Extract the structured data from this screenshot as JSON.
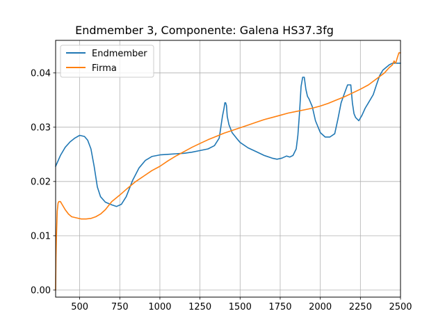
{
  "chart_data": {
    "type": "line",
    "title": "Endmember 3, Componente: Galena HS37.3fg",
    "xlabel": "",
    "ylabel": "",
    "xlim": [
      350,
      2500
    ],
    "ylim": [
      -0.0013,
      0.046
    ],
    "xticks": [
      500,
      750,
      1000,
      1250,
      1500,
      1750,
      2000,
      2250,
      2500
    ],
    "yticks": [
      0.0,
      0.01,
      0.02,
      0.03,
      0.04
    ],
    "ytick_labels": [
      "0.00",
      "0.01",
      "0.02",
      "0.03",
      "0.04"
    ],
    "grid": true,
    "legend_position": "top-left",
    "series": [
      {
        "name": "Endmember",
        "color": "#1f77b4",
        "x": [
          350,
          380,
          410,
          440,
          470,
          500,
          530,
          550,
          570,
          590,
          610,
          630,
          660,
          700,
          730,
          760,
          790,
          830,
          870,
          910,
          950,
          1000,
          1050,
          1100,
          1150,
          1200,
          1250,
          1300,
          1340,
          1370,
          1390,
          1400,
          1405,
          1410,
          1415,
          1420,
          1430,
          1450,
          1480,
          1500,
          1550,
          1600,
          1650,
          1700,
          1730,
          1760,
          1790,
          1810,
          1830,
          1850,
          1860,
          1870,
          1880,
          1890,
          1900,
          1910,
          1920,
          1930,
          1950,
          1970,
          2000,
          2030,
          2060,
          2090,
          2110,
          2130,
          2150,
          2170,
          2190,
          2200,
          2210,
          2220,
          2240,
          2260,
          2280,
          2300,
          2330,
          2350,
          2370,
          2390,
          2410,
          2430,
          2450,
          2470,
          2490,
          2500
        ],
        "values": [
          0.0228,
          0.0248,
          0.0263,
          0.0273,
          0.028,
          0.0285,
          0.0283,
          0.0276,
          0.026,
          0.0228,
          0.019,
          0.0172,
          0.0162,
          0.0157,
          0.0154,
          0.0158,
          0.0172,
          0.0202,
          0.0225,
          0.0239,
          0.0246,
          0.0249,
          0.025,
          0.0251,
          0.0252,
          0.0254,
          0.0257,
          0.026,
          0.0266,
          0.028,
          0.032,
          0.0335,
          0.0345,
          0.0345,
          0.034,
          0.032,
          0.0305,
          0.029,
          0.0279,
          0.0272,
          0.0262,
          0.0255,
          0.0248,
          0.0243,
          0.0241,
          0.0243,
          0.0247,
          0.0245,
          0.0248,
          0.026,
          0.0285,
          0.0325,
          0.0375,
          0.0392,
          0.0392,
          0.037,
          0.0357,
          0.0352,
          0.0338,
          0.0312,
          0.029,
          0.0282,
          0.0282,
          0.0288,
          0.0315,
          0.0345,
          0.0362,
          0.0378,
          0.0378,
          0.0345,
          0.0325,
          0.0318,
          0.0312,
          0.0322,
          0.0335,
          0.0345,
          0.036,
          0.0378,
          0.0395,
          0.0405,
          0.041,
          0.0415,
          0.0418,
          0.0418,
          0.0418,
          0.0418
        ]
      },
      {
        "name": "Firma",
        "color": "#ff7f0e",
        "x": [
          350,
          352,
          355,
          360,
          365,
          370,
          380,
          390,
          410,
          430,
          450,
          480,
          510,
          540,
          570,
          600,
          630,
          660,
          700,
          750,
          800,
          850,
          900,
          950,
          1000,
          1050,
          1100,
          1150,
          1200,
          1250,
          1300,
          1350,
          1400,
          1450,
          1500,
          1550,
          1600,
          1650,
          1700,
          1750,
          1800,
          1850,
          1900,
          1950,
          2000,
          2050,
          2100,
          2150,
          2200,
          2250,
          2300,
          2350,
          2400,
          2430,
          2450,
          2460,
          2470,
          2480,
          2490,
          2500
        ],
        "values": [
          0.0,
          0.006,
          0.01,
          0.0145,
          0.016,
          0.0163,
          0.0163,
          0.0158,
          0.0148,
          0.014,
          0.0135,
          0.0133,
          0.0131,
          0.0131,
          0.0132,
          0.0135,
          0.014,
          0.0148,
          0.0163,
          0.0175,
          0.0188,
          0.02,
          0.021,
          0.022,
          0.0228,
          0.0238,
          0.0247,
          0.0255,
          0.0263,
          0.027,
          0.0277,
          0.0283,
          0.0289,
          0.0294,
          0.0299,
          0.0304,
          0.0309,
          0.0314,
          0.0318,
          0.0322,
          0.0326,
          0.0329,
          0.0332,
          0.0335,
          0.0339,
          0.0344,
          0.035,
          0.0356,
          0.0363,
          0.037,
          0.0378,
          0.0389,
          0.04,
          0.041,
          0.0415,
          0.0422,
          0.0418,
          0.0428,
          0.0437,
          0.0437
        ]
      }
    ]
  }
}
